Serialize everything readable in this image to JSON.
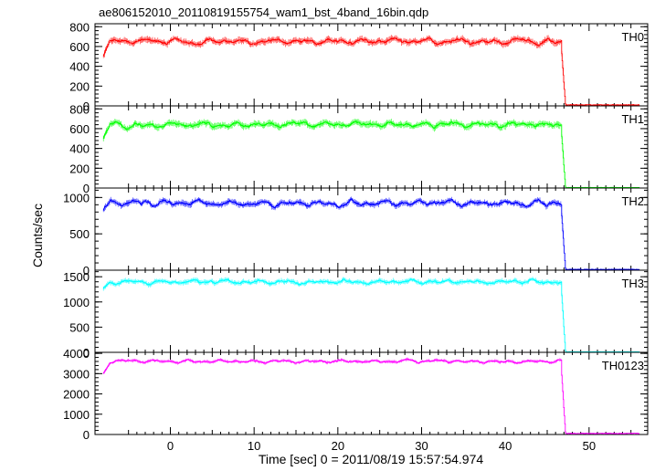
{
  "chart_data": {
    "type": "line",
    "title": "ae806152010_20110819155754_wam1_bst_4band_16bin.qdp",
    "xlabel": "Time [sec] 0 = 2011/08/19 15:57:54.974",
    "ylabel": "Counts/sec",
    "xlim": [
      -9,
      57
    ],
    "xticks": [
      0,
      10,
      20,
      30,
      40,
      50
    ],
    "grid": false,
    "error_bars": true,
    "t_start": -8,
    "t_drop": 47,
    "t_end": 56,
    "panels": [
      {
        "name": "TH0",
        "color": "#ff0000",
        "ylim": [
          0,
          830
        ],
        "yticks": [
          0,
          200,
          400,
          600,
          800
        ],
        "start_level": 520,
        "plateau_mean": 650,
        "plateau_amplitude": 60,
        "post_level": 10
      },
      {
        "name": "TH1",
        "color": "#00ff00",
        "ylim": [
          0,
          830
        ],
        "yticks": [
          0,
          200,
          400,
          600,
          800
        ],
        "start_level": 500,
        "plateau_mean": 640,
        "plateau_amplitude": 60,
        "post_level": 5
      },
      {
        "name": "TH2",
        "color": "#0000ff",
        "ylim": [
          0,
          1130
        ],
        "yticks": [
          0,
          500,
          1000
        ],
        "start_level": 830,
        "plateau_mean": 920,
        "plateau_amplitude": 90,
        "post_level": 10
      },
      {
        "name": "TH3",
        "color": "#00ffff",
        "ylim": [
          0,
          1630
        ],
        "yticks": [
          0,
          500,
          1000,
          1500
        ],
        "start_level": 1250,
        "plateau_mean": 1400,
        "plateau_amplitude": 90,
        "post_level": 10
      },
      {
        "name": "TH0123",
        "color": "#ff00ff",
        "ylim": [
          0,
          4050
        ],
        "yticks": [
          0,
          1000,
          2000,
          3000,
          4000
        ],
        "start_level": 3000,
        "plateau_mean": 3600,
        "plateau_amplitude": 150,
        "post_level": 50
      }
    ]
  }
}
